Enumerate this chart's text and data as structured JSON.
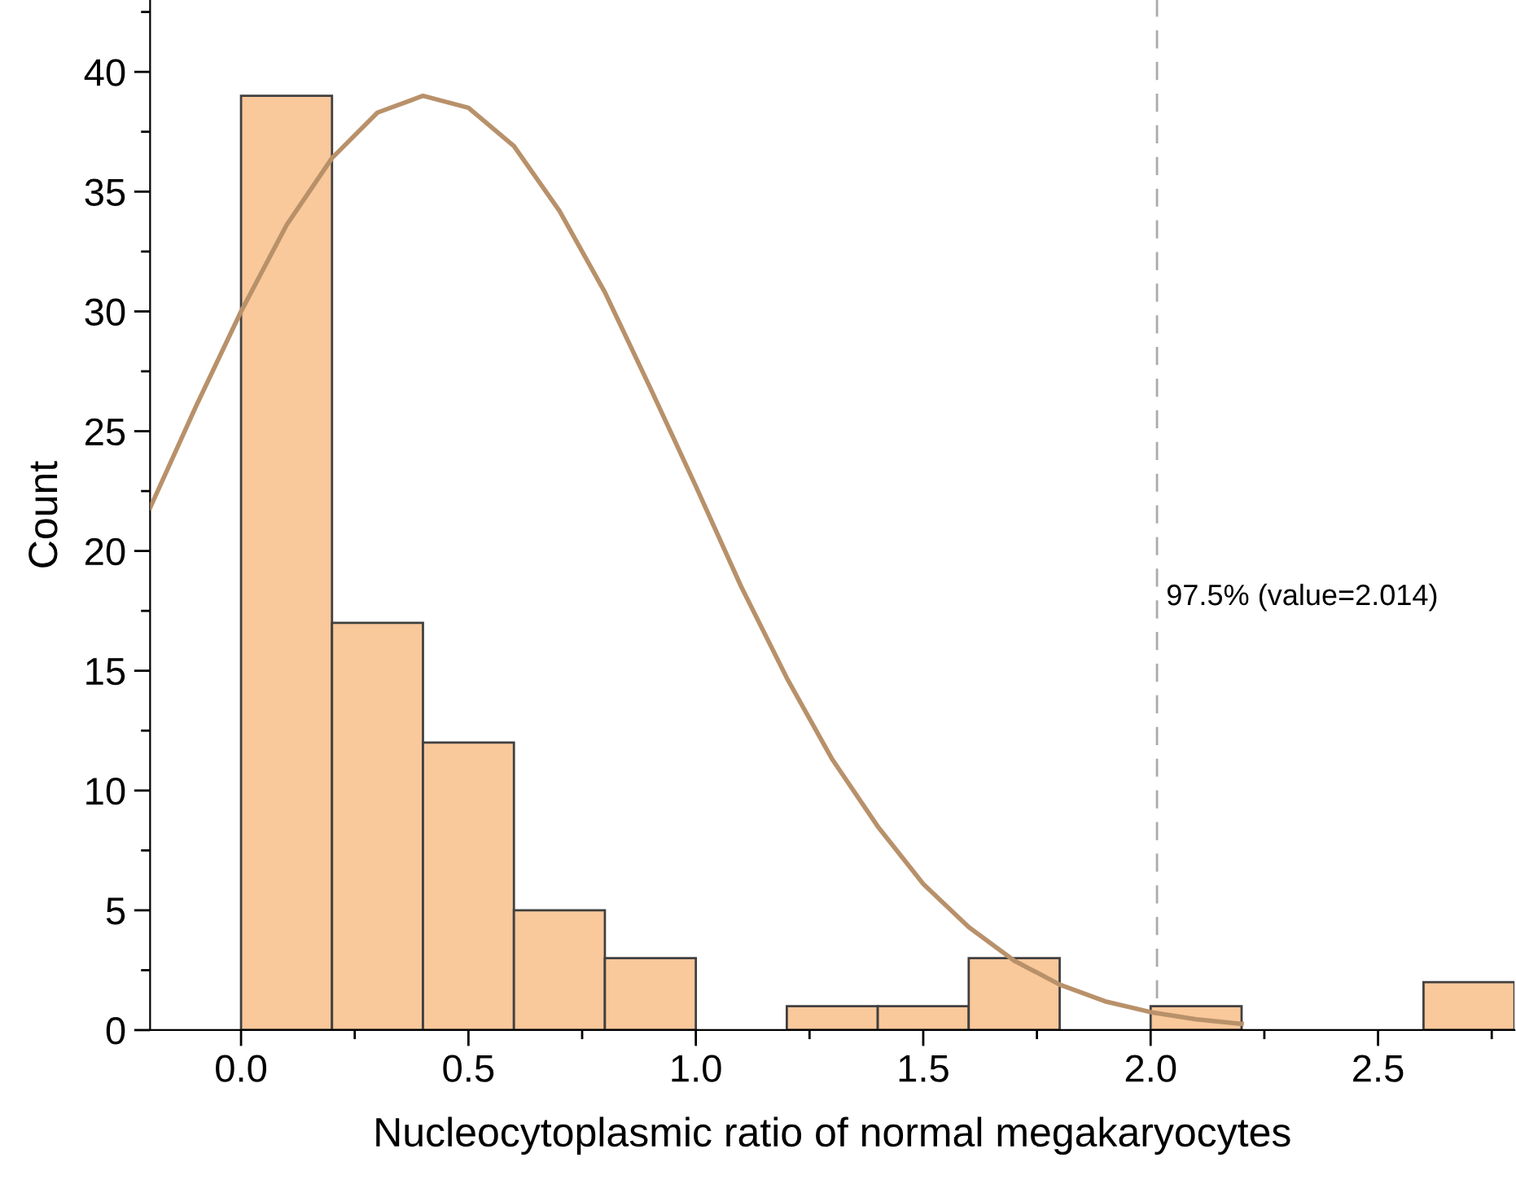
{
  "chart_data": {
    "type": "histogram",
    "xlabel": "Nucleocytoplasmic ratio of normal megakaryocytes",
    "ylabel": "Count",
    "bins": [
      0.0,
      0.2,
      0.4,
      0.6,
      0.8,
      1.0,
      1.2,
      1.4,
      1.6,
      1.8,
      2.0,
      2.2,
      2.4,
      2.6,
      2.8
    ],
    "values": [
      39,
      17,
      12,
      5,
      3,
      0,
      1,
      1,
      3,
      0,
      1,
      0,
      0,
      2
    ],
    "color": "#f9c89b",
    "series": [
      {
        "type": "line",
        "color": "#b8916a",
        "x": [
          -0.2,
          -0.1,
          0.0,
          0.1,
          0.2,
          0.3,
          0.4,
          0.5,
          0.6,
          0.7,
          0.8,
          0.9,
          1.0,
          1.1,
          1.2,
          1.3,
          1.4,
          1.5,
          1.6,
          1.7,
          1.8,
          1.9,
          2.0,
          2.1,
          2.2
        ],
        "values": [
          21.8,
          26.0,
          30.0,
          33.6,
          36.4,
          38.3,
          39.0,
          38.5,
          36.9,
          34.2,
          30.8,
          26.8,
          22.7,
          18.5,
          14.7,
          11.3,
          8.5,
          6.1,
          4.3,
          2.9,
          1.9,
          1.2,
          0.75,
          0.45,
          0.26
        ]
      }
    ],
    "ref_lines": [
      {
        "axis": "x",
        "value": 2.014,
        "label": "97.5% (value=2.014)",
        "color": "#aaaaaa",
        "line_style": "dashed"
      }
    ],
    "xlim": [
      -0.2,
      2.8
    ],
    "ylim": [
      0,
      43
    ],
    "xticks": [
      {
        "value": 0,
        "label": "0.0"
      },
      0.5,
      {
        "value": 1,
        "label": "1.0"
      },
      1.5,
      {
        "value": 2,
        "label": "2.0"
      },
      2.5
    ],
    "yticks": [
      0,
      5,
      10,
      15,
      20,
      25,
      30,
      35,
      40
    ],
    "grid": false,
    "legend": false
  }
}
